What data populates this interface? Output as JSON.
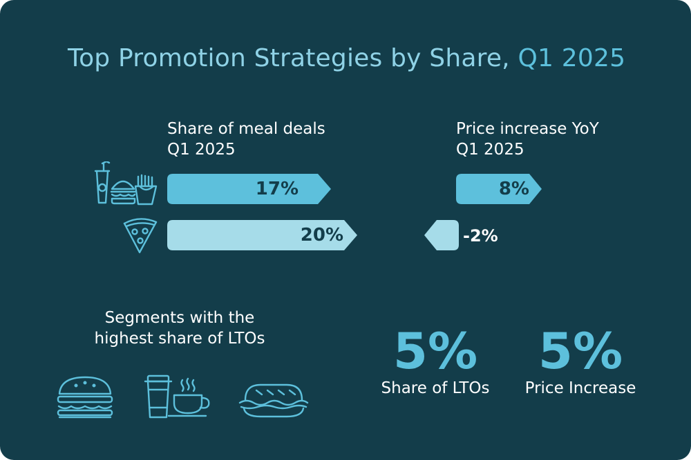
{
  "title": {
    "main": "Top Promotion Strategies by Share, ",
    "highlight": "Q1 2025"
  },
  "chart_data": {
    "type": "bar",
    "categories": [
      "combo-meal",
      "pizza"
    ],
    "series": [
      {
        "name": "Share of meal deals Q1 2025",
        "values": [
          17,
          20
        ]
      },
      {
        "name": "Price increase YoY Q1 2025",
        "values": [
          8,
          -2
        ]
      }
    ],
    "labels": {
      "share": [
        "17%",
        "20%"
      ],
      "price": [
        "8%",
        "-2%"
      ]
    }
  },
  "headers": {
    "share_line1": "Share of meal deals",
    "share_line2": "Q1 2025",
    "price_line1": "Price increase YoY",
    "price_line2": "Q1 2025"
  },
  "row_icons": [
    "combo-meal-icon",
    "pizza-slice-icon"
  ],
  "segments": {
    "title_line1": "Segments with the",
    "title_line2": "highest share of LTOs",
    "icons": [
      "burger-icon",
      "coffee-cups-icon",
      "sandwich-icon"
    ]
  },
  "kpis": [
    {
      "value": "5%",
      "caption": "Share of LTOs"
    },
    {
      "value": "5%",
      "caption": "Price Increase"
    }
  ],
  "colors": {
    "background": "#133d4a",
    "bar_dark": "#5dc0dc",
    "bar_light": "#a6dce9",
    "title": "#8fd2e6",
    "accent": "#5dc0dc",
    "text": "#ffffff"
  }
}
